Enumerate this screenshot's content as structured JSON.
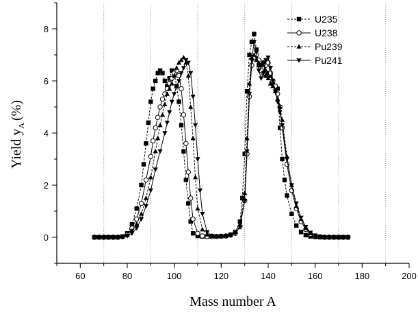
{
  "chart_data": {
    "type": "line",
    "xlabel": "Mass number A",
    "ylabel": "Yield y",
    "ylabel_subscript": "A",
    "ylabel_unit": "(%)",
    "xlim": [
      50,
      200
    ],
    "ylim": [
      -1,
      9
    ],
    "xticks": [
      60,
      80,
      100,
      120,
      140,
      160,
      180,
      200
    ],
    "yticks": [
      0,
      2,
      4,
      6,
      8
    ],
    "vertical_gridlines_at": [
      70,
      90,
      110,
      130,
      150,
      170,
      190
    ],
    "legend_position": "top-right",
    "series": [
      {
        "name": "U235",
        "style": "dashed",
        "marker": "square-filled",
        "color": "#000000",
        "x": [
          66,
          68,
          70,
          72,
          74,
          76,
          78,
          80,
          82,
          84,
          86,
          87,
          88,
          89,
          90,
          91,
          92,
          93,
          94,
          95,
          96,
          97,
          98,
          99,
          100,
          101,
          102,
          103,
          104,
          105,
          106,
          107,
          108,
          110,
          112,
          114,
          116,
          118,
          120,
          122,
          124,
          126,
          128,
          129,
          130,
          131,
          132,
          133,
          134,
          135,
          136,
          137,
          138,
          139,
          140,
          141,
          142,
          143,
          144,
          145,
          146,
          147,
          148,
          150,
          152,
          154,
          156,
          158,
          160,
          162,
          164,
          166,
          168,
          170,
          172,
          174
        ],
        "y": [
          0,
          0,
          0,
          0,
          0,
          0,
          0.03,
          0.15,
          0.5,
          1.1,
          2.0,
          2.8,
          3.6,
          4.4,
          5.2,
          5.7,
          6.0,
          6.3,
          6.4,
          6.3,
          6.0,
          5.8,
          6.1,
          6.4,
          6.3,
          5.8,
          5.2,
          4.3,
          3.3,
          2.2,
          1.3,
          0.6,
          0.15,
          0.05,
          0.03,
          0.03,
          0.03,
          0.03,
          0.04,
          0.05,
          0.1,
          0.2,
          0.6,
          1.5,
          3.2,
          5.6,
          7.0,
          7.5,
          7.8,
          7.2,
          6.6,
          6.6,
          6.7,
          6.2,
          6.3,
          6.2,
          5.9,
          5.8,
          5.7,
          4.2,
          3.0,
          2.2,
          1.6,
          0.9,
          0.45,
          0.2,
          0.08,
          0.03,
          0.01,
          0,
          0,
          0,
          0,
          0,
          0,
          0
        ]
      },
      {
        "name": "U238",
        "style": "solid",
        "marker": "circle-open",
        "color": "#000000",
        "x": [
          66,
          68,
          70,
          72,
          74,
          76,
          78,
          80,
          82,
          84,
          86,
          88,
          90,
          91,
          92,
          93,
          94,
          95,
          96,
          97,
          98,
          99,
          100,
          101,
          102,
          103,
          104,
          105,
          106,
          107,
          108,
          110,
          112,
          114,
          116,
          118,
          120,
          122,
          124,
          126,
          128,
          130,
          131,
          132,
          133,
          134,
          135,
          136,
          137,
          138,
          139,
          140,
          141,
          142,
          143,
          144,
          145,
          146,
          148,
          150,
          152,
          154,
          156,
          158,
          160,
          162,
          164,
          166,
          168,
          170,
          172,
          174
        ],
        "y": [
          0,
          0,
          0,
          0,
          0,
          0,
          0.02,
          0.1,
          0.35,
          0.7,
          1.3,
          2.2,
          3.1,
          3.7,
          4.2,
          4.6,
          5.0,
          5.3,
          5.5,
          5.7,
          5.9,
          6.1,
          6.3,
          6.4,
          6.2,
          5.7,
          4.7,
          3.6,
          2.5,
          1.5,
          0.7,
          0.15,
          0.05,
          0.03,
          0.03,
          0.03,
          0.04,
          0.05,
          0.08,
          0.15,
          0.4,
          1.4,
          3.2,
          5.4,
          6.6,
          6.9,
          7.0,
          6.8,
          6.4,
          6.3,
          6.6,
          6.7,
          6.3,
          6.0,
          5.8,
          5.5,
          5.0,
          4.2,
          2.8,
          1.8,
          1.1,
          0.6,
          0.3,
          0.12,
          0.05,
          0.02,
          0,
          0,
          0,
          0,
          0,
          0
        ]
      },
      {
        "name": "Pu239",
        "style": "dashed",
        "marker": "triangle-up-filled",
        "color": "#000000",
        "x": [
          66,
          68,
          70,
          72,
          74,
          76,
          78,
          80,
          82,
          84,
          86,
          88,
          90,
          92,
          93,
          94,
          95,
          96,
          97,
          98,
          99,
          100,
          101,
          102,
          103,
          104,
          105,
          106,
          107,
          108,
          109,
          110,
          112,
          114,
          116,
          118,
          120,
          122,
          124,
          126,
          128,
          130,
          131,
          132,
          133,
          134,
          135,
          136,
          137,
          138,
          139,
          140,
          141,
          142,
          143,
          144,
          145,
          146,
          148,
          150,
          152,
          154,
          156,
          158,
          160,
          162,
          164,
          166,
          168,
          170,
          172,
          174
        ],
        "y": [
          0,
          0,
          0,
          0,
          0,
          0,
          0.02,
          0.08,
          0.25,
          0.5,
          0.9,
          1.5,
          2.3,
          3.3,
          3.8,
          4.3,
          4.7,
          5.1,
          5.5,
          5.7,
          5.9,
          6.2,
          6.5,
          6.7,
          6.8,
          6.9,
          6.7,
          6.2,
          5.0,
          3.8,
          2.3,
          1.1,
          0.3,
          0.1,
          0.05,
          0.04,
          0.05,
          0.06,
          0.1,
          0.2,
          0.5,
          1.7,
          3.8,
          5.9,
          6.9,
          7.0,
          6.8,
          6.7,
          6.6,
          6.7,
          6.4,
          6.1,
          5.9,
          5.8,
          5.6,
          5.3,
          5.0,
          4.5,
          3.1,
          2.0,
          1.2,
          0.7,
          0.35,
          0.15,
          0.06,
          0.02,
          0,
          0,
          0,
          0,
          0,
          0
        ]
      },
      {
        "name": "Pu241",
        "style": "solid",
        "marker": "triangle-down-filled",
        "color": "#000000",
        "x": [
          66,
          68,
          70,
          72,
          74,
          76,
          78,
          80,
          82,
          84,
          86,
          88,
          90,
          92,
          94,
          96,
          97,
          98,
          99,
          100,
          101,
          102,
          103,
          104,
          105,
          106,
          107,
          108,
          109,
          110,
          111,
          112,
          114,
          116,
          118,
          120,
          122,
          124,
          126,
          128,
          130,
          131,
          132,
          133,
          134,
          135,
          136,
          137,
          138,
          139,
          140,
          141,
          142,
          143,
          144,
          145,
          146,
          148,
          150,
          152,
          154,
          156,
          158,
          160,
          162,
          164,
          166,
          168,
          170,
          172,
          174
        ],
        "y": [
          0,
          0,
          0,
          0,
          0,
          0,
          0.02,
          0.05,
          0.15,
          0.35,
          0.7,
          1.2,
          1.8,
          2.6,
          3.3,
          4.0,
          4.4,
          4.8,
          5.2,
          5.5,
          5.8,
          6.0,
          6.3,
          6.5,
          6.8,
          6.7,
          6.3,
          5.4,
          4.3,
          3.0,
          1.8,
          0.9,
          0.2,
          0.06,
          0.04,
          0.04,
          0.05,
          0.08,
          0.15,
          0.4,
          1.4,
          3.3,
          5.5,
          6.8,
          7.5,
          7.1,
          6.4,
          6.1,
          6.3,
          6.8,
          6.9,
          6.5,
          6.0,
          5.6,
          5.2,
          4.8,
          4.3,
          3.0,
          2.0,
          1.3,
          0.75,
          0.4,
          0.18,
          0.07,
          0.03,
          0.01,
          0,
          0,
          0,
          0,
          0
        ]
      }
    ]
  }
}
